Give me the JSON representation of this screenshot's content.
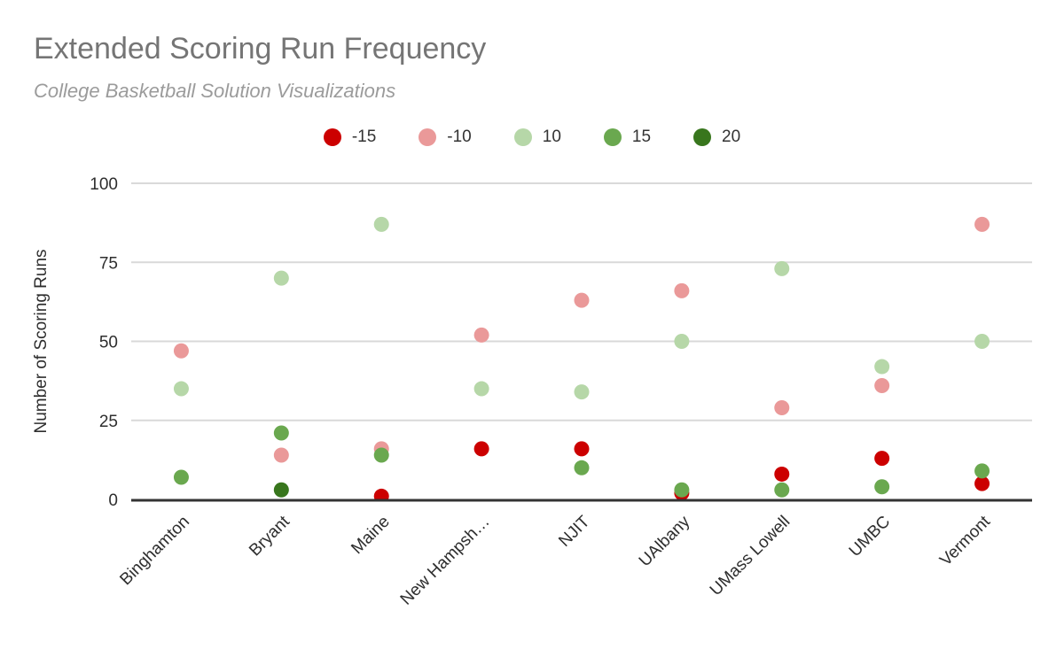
{
  "chart_data": {
    "type": "scatter",
    "title": "Extended Scoring Run Frequency",
    "subtitle": "College Basketball Solution Visualizations",
    "ylabel": "Number of Scoring Runs",
    "xlabel": "",
    "ylim": [
      0,
      100
    ],
    "yticks": [
      0,
      25,
      50,
      75,
      100
    ],
    "grid": true,
    "legend_position": "top",
    "categories": [
      "Binghamton",
      "Bryant",
      "Maine",
      "New Hampsh…",
      "NJIT",
      "UAlbany",
      "UMass Lowell",
      "UMBC",
      "Vermont"
    ],
    "series": [
      {
        "name": "-15",
        "color": "#cc0000",
        "values": [
          null,
          null,
          1,
          16,
          16,
          2,
          8,
          13,
          5
        ]
      },
      {
        "name": "-10",
        "color": "#ea9999",
        "values": [
          47,
          14,
          16,
          52,
          63,
          66,
          29,
          36,
          87
        ]
      },
      {
        "name": "10",
        "color": "#b6d7a8",
        "values": [
          35,
          70,
          87,
          35,
          34,
          50,
          73,
          42,
          50
        ]
      },
      {
        "name": "15",
        "color": "#6aa84f",
        "values": [
          7,
          21,
          14,
          null,
          10,
          3,
          3,
          4,
          9
        ]
      },
      {
        "name": "20",
        "color": "#38761d",
        "values": [
          null,
          3,
          null,
          null,
          null,
          null,
          null,
          null,
          null
        ]
      }
    ],
    "colors": {
      "gridline": "#d9d9d9",
      "axis": "#333333",
      "tick_text": "#2e2e2e",
      "category_text": "#2e2e2e",
      "title_text": "#757575",
      "subtitle_text": "#9b9b9b"
    }
  }
}
